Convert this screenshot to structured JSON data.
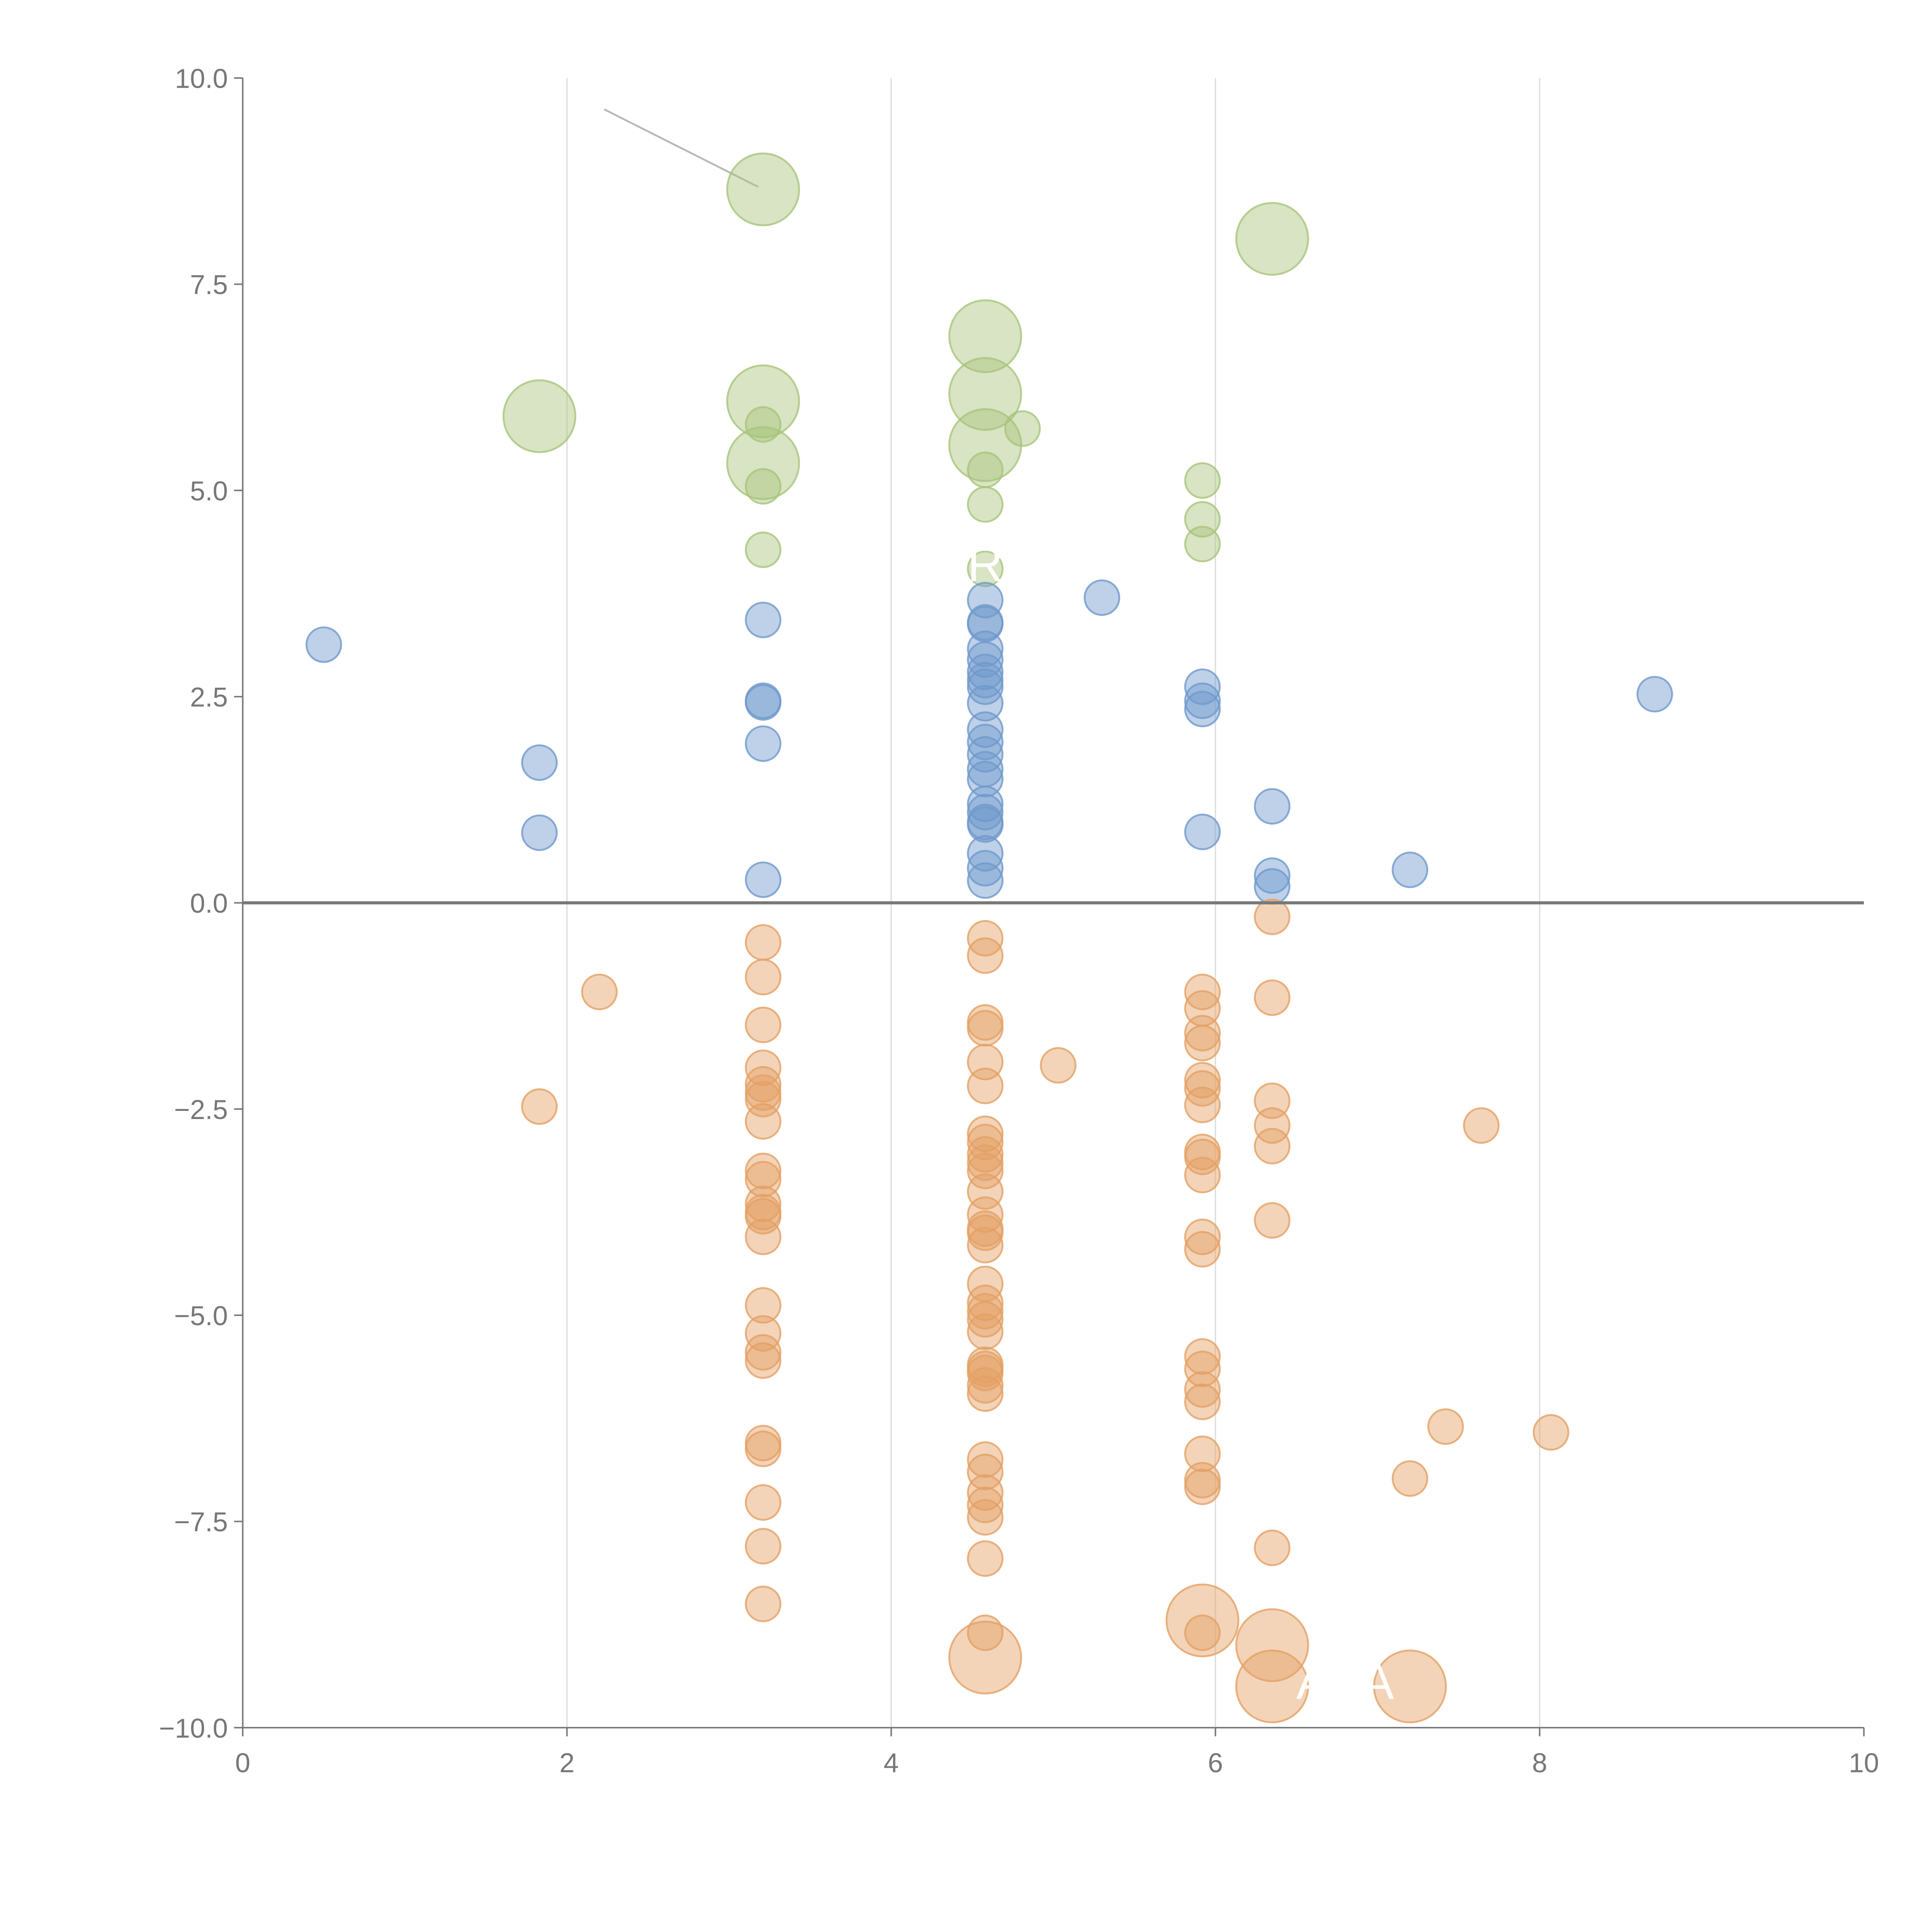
{
  "chart_data": {
    "type": "scatter",
    "title": "",
    "xlabel": "",
    "ylabel": "",
    "xlim": [
      0,
      10
    ],
    "ylim": [
      -10,
      10
    ],
    "x_ticks": [
      "0",
      "2",
      "4",
      "6",
      "8",
      "10"
    ],
    "x_tick_values": [
      0,
      2,
      4,
      6,
      8,
      10
    ],
    "y_ticks": [
      "10.0",
      "7.5",
      "5.0",
      "2.5",
      "0.0",
      "−2.5",
      "−5.0",
      "−7.5",
      "−10.0"
    ],
    "y_tick_values": [
      10,
      7.5,
      5,
      2.5,
      0,
      -2.5,
      -5,
      -7.5,
      -10
    ],
    "grid": "vertical",
    "reference_line_y": 0,
    "annotations": [
      {
        "text": "R",
        "x": 4.58,
        "y": 3.9
      },
      {
        "text": "A",
        "x": 6.6,
        "y": -9.65
      },
      {
        "text": "A",
        "x": 7.0,
        "y": -9.65
      }
    ],
    "series": [
      {
        "name": "green",
        "color": "#a8c47a",
        "points": [
          [
            3.21,
            8.65,
            4.3
          ],
          [
            6.35,
            8.05,
            4.3
          ],
          [
            4.58,
            6.87,
            4.3
          ],
          [
            1.83,
            5.9,
            4.3
          ],
          [
            3.21,
            6.08,
            4.3
          ],
          [
            4.58,
            6.17,
            4.3
          ],
          [
            4.58,
            5.55,
            4.3
          ],
          [
            3.21,
            5.33,
            4.3
          ],
          [
            3.21,
            5.8,
            1
          ],
          [
            4.81,
            5.75,
            1
          ],
          [
            4.58,
            5.25,
            1
          ],
          [
            3.21,
            5.05,
            1
          ],
          [
            4.58,
            4.83,
            1
          ],
          [
            5.92,
            5.12,
            1
          ],
          [
            5.92,
            4.65,
            1
          ],
          [
            5.92,
            4.35,
            1
          ],
          [
            3.21,
            4.28,
            1
          ],
          [
            4.58,
            4.05,
            1
          ]
        ]
      },
      {
        "name": "blue",
        "color": "#6f98cc",
        "points": [
          [
            0.5,
            3.13,
            1
          ],
          [
            1.83,
            1.7,
            1
          ],
          [
            1.83,
            0.85,
            1
          ],
          [
            3.21,
            3.43,
            1
          ],
          [
            3.21,
            2.45,
            1
          ],
          [
            3.21,
            2.43,
            1
          ],
          [
            3.21,
            1.93,
            1
          ],
          [
            3.21,
            0.28,
            1
          ],
          [
            5.3,
            3.7,
            1
          ],
          [
            4.58,
            3.67,
            1
          ],
          [
            4.58,
            3.38,
            1
          ],
          [
            4.58,
            3.4,
            1
          ],
          [
            4.58,
            3.08,
            1
          ],
          [
            4.58,
            2.95,
            1
          ],
          [
            4.58,
            2.8,
            1
          ],
          [
            4.58,
            2.7,
            1
          ],
          [
            4.58,
            2.62,
            1
          ],
          [
            4.58,
            2.42,
            1
          ],
          [
            4.58,
            2.1,
            1
          ],
          [
            4.58,
            1.95,
            1
          ],
          [
            4.58,
            1.8,
            1
          ],
          [
            4.58,
            1.62,
            1
          ],
          [
            4.58,
            1.5,
            1
          ],
          [
            4.58,
            1.2,
            1
          ],
          [
            4.58,
            1.1,
            1
          ],
          [
            4.58,
            0.98,
            1
          ],
          [
            4.58,
            0.95,
            1
          ],
          [
            4.58,
            0.6,
            1
          ],
          [
            4.58,
            0.42,
            1
          ],
          [
            4.58,
            0.27,
            1
          ],
          [
            5.92,
            2.62,
            1
          ],
          [
            5.92,
            2.45,
            1
          ],
          [
            5.92,
            2.35,
            1
          ],
          [
            5.92,
            0.86,
            1
          ],
          [
            6.35,
            1.17,
            1
          ],
          [
            6.35,
            0.33,
            1
          ],
          [
            6.35,
            0.2,
            1
          ],
          [
            7.2,
            0.4,
            1
          ],
          [
            8.71,
            2.53,
            1
          ]
        ]
      },
      {
        "name": "orange",
        "color": "#e4a064",
        "points": [
          [
            3.21,
            -0.48,
            1
          ],
          [
            3.21,
            -0.9,
            1
          ],
          [
            3.21,
            -1.48,
            1
          ],
          [
            3.21,
            -2.0,
            1
          ],
          [
            3.21,
            -2.2,
            1
          ],
          [
            3.21,
            -2.3,
            1
          ],
          [
            3.21,
            -2.38,
            1
          ],
          [
            3.21,
            -2.65,
            1
          ],
          [
            3.21,
            -3.25,
            1
          ],
          [
            3.21,
            -3.35,
            1
          ],
          [
            3.21,
            -3.65,
            1
          ],
          [
            3.21,
            -3.75,
            1
          ],
          [
            3.21,
            -3.8,
            1
          ],
          [
            3.21,
            -4.05,
            1
          ],
          [
            3.21,
            -4.88,
            1
          ],
          [
            3.21,
            -5.22,
            1
          ],
          [
            3.21,
            -5.45,
            1
          ],
          [
            3.21,
            -5.55,
            1
          ],
          [
            3.21,
            -6.55,
            1
          ],
          [
            3.21,
            -6.62,
            1
          ],
          [
            3.21,
            -7.27,
            1
          ],
          [
            3.21,
            -7.8,
            1
          ],
          [
            3.21,
            -8.5,
            1
          ],
          [
            4.58,
            -0.43,
            1
          ],
          [
            4.58,
            -0.64,
            1
          ],
          [
            4.58,
            -1.45,
            1
          ],
          [
            4.58,
            -1.52,
            1
          ],
          [
            4.58,
            -1.93,
            1
          ],
          [
            4.58,
            -2.22,
            1
          ],
          [
            4.58,
            -2.8,
            1
          ],
          [
            4.58,
            -2.9,
            1
          ],
          [
            4.58,
            -3.05,
            1
          ],
          [
            4.58,
            -3.15,
            1
          ],
          [
            4.58,
            -3.25,
            1
          ],
          [
            4.58,
            -3.5,
            1
          ],
          [
            4.58,
            -3.78,
            1
          ],
          [
            4.58,
            -3.95,
            1
          ],
          [
            4.58,
            -4.0,
            1
          ],
          [
            4.58,
            -4.15,
            1
          ],
          [
            4.58,
            -4.62,
            1
          ],
          [
            4.58,
            -4.85,
            1
          ],
          [
            4.58,
            -4.95,
            1
          ],
          [
            4.58,
            -5.05,
            1
          ],
          [
            4.58,
            -5.2,
            1
          ],
          [
            4.58,
            -5.6,
            1
          ],
          [
            4.58,
            -5.65,
            1
          ],
          [
            4.58,
            -5.7,
            1
          ],
          [
            4.58,
            -5.85,
            1
          ],
          [
            4.58,
            -5.95,
            1
          ],
          [
            4.58,
            -6.75,
            1
          ],
          [
            4.58,
            -6.9,
            1
          ],
          [
            4.58,
            -7.15,
            1
          ],
          [
            4.58,
            -7.3,
            1
          ],
          [
            4.58,
            -7.45,
            1
          ],
          [
            4.58,
            -7.95,
            1
          ],
          [
            4.58,
            -8.85,
            1
          ],
          [
            1.83,
            -2.47,
            1
          ],
          [
            2.2,
            -1.08,
            1
          ],
          [
            5.03,
            -1.97,
            1
          ],
          [
            5.92,
            -1.08,
            1
          ],
          [
            5.92,
            -1.28,
            1
          ],
          [
            5.92,
            -1.58,
            1
          ],
          [
            5.92,
            -1.7,
            1
          ],
          [
            5.92,
            -2.15,
            1
          ],
          [
            5.92,
            -2.25,
            1
          ],
          [
            5.92,
            -2.45,
            1
          ],
          [
            5.92,
            -3.02,
            1
          ],
          [
            5.92,
            -3.08,
            1
          ],
          [
            5.92,
            -3.3,
            1
          ],
          [
            5.92,
            -4.05,
            1
          ],
          [
            5.92,
            -4.2,
            1
          ],
          [
            5.92,
            -5.5,
            1
          ],
          [
            5.92,
            -5.65,
            1
          ],
          [
            5.92,
            -5.9,
            1
          ],
          [
            5.92,
            -6.05,
            1
          ],
          [
            5.92,
            -6.68,
            1
          ],
          [
            5.92,
            -7.0,
            1
          ],
          [
            5.92,
            -7.08,
            1
          ],
          [
            5.92,
            -8.85,
            1
          ],
          [
            6.35,
            -0.17,
            1
          ],
          [
            6.35,
            -1.15,
            1
          ],
          [
            6.35,
            -2.4,
            1
          ],
          [
            6.35,
            -2.7,
            1
          ],
          [
            6.35,
            -2.95,
            1
          ],
          [
            6.35,
            -3.85,
            1
          ],
          [
            6.35,
            -7.82,
            1
          ],
          [
            7.2,
            -6.98,
            1
          ],
          [
            7.42,
            -6.35,
            1
          ],
          [
            7.64,
            -2.7,
            1
          ],
          [
            8.07,
            -6.42,
            1
          ],
          [
            4.58,
            -9.15,
            4.3
          ],
          [
            5.92,
            -8.7,
            4.3
          ],
          [
            6.35,
            -9.0,
            4.3
          ],
          [
            6.35,
            -9.5,
            4.3
          ],
          [
            7.2,
            -9.5,
            4.3
          ]
        ]
      }
    ]
  }
}
